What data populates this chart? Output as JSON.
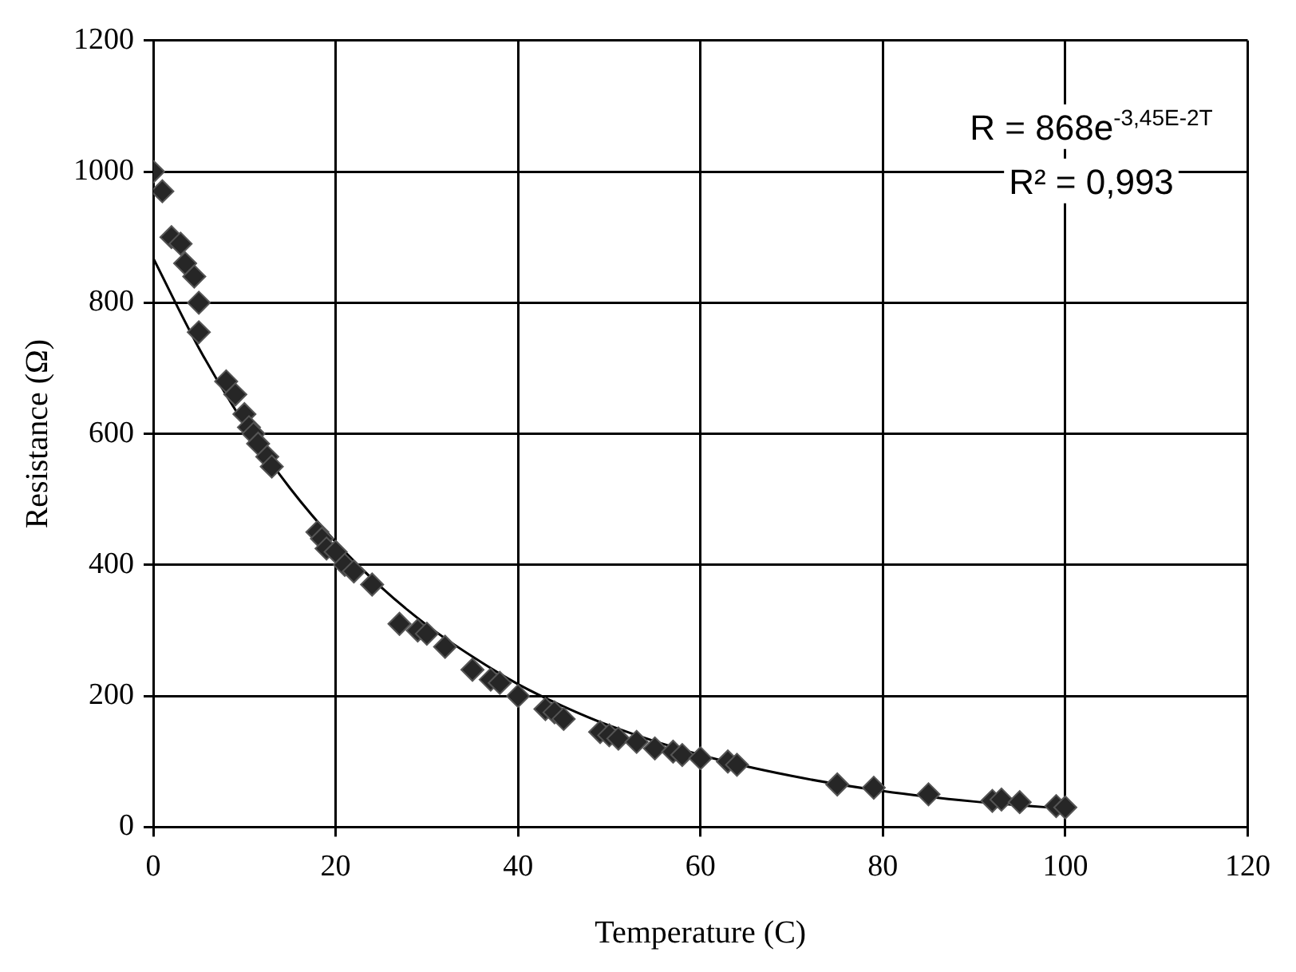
{
  "chart_data": {
    "type": "scatter",
    "xlabel": "Temperature (C)",
    "ylabel": "Resistance (Ω)",
    "xlim": [
      0,
      120
    ],
    "xticks": [
      0,
      20,
      40,
      60,
      80,
      100,
      120
    ],
    "ylim": [
      0,
      1200
    ],
    "yticks": [
      0,
      200,
      400,
      600,
      800,
      1000,
      1200
    ],
    "grid": true,
    "marker": "diamond",
    "annotations": [
      "R = 868e$^{-3,45E-2T}$",
      "R² = 0,993"
    ],
    "series": [
      {
        "type": "scatter",
        "color": "#262626",
        "x": [
          0,
          1,
          2,
          3,
          3.5,
          4.5,
          5,
          5,
          8,
          9,
          10,
          10.5,
          11,
          11.5,
          12.5,
          13,
          18,
          18.5,
          19,
          20,
          21,
          22,
          24,
          27,
          29,
          30,
          32,
          35,
          37,
          38,
          40,
          43,
          44,
          45,
          49,
          50,
          51,
          53,
          55,
          57,
          58,
          60,
          63,
          64,
          75,
          79,
          85,
          92,
          93,
          95,
          99,
          100
        ],
        "values": [
          1000,
          970,
          900,
          890,
          860,
          840,
          800,
          755,
          680,
          660,
          630,
          610,
          600,
          585,
          565,
          550,
          450,
          440,
          425,
          420,
          400,
          390,
          370,
          310,
          300,
          295,
          275,
          240,
          225,
          220,
          200,
          180,
          175,
          165,
          145,
          140,
          135,
          130,
          120,
          115,
          110,
          105,
          100,
          95,
          65,
          60,
          50,
          40,
          42,
          38,
          32,
          30
        ]
      },
      {
        "type": "line",
        "color": "#000000",
        "marker": "none",
        "x": [
          0,
          5,
          10,
          15,
          20,
          25,
          30,
          35,
          40,
          45,
          50,
          60,
          70,
          80,
          90,
          100
        ],
        "values": [
          868,
          731,
          615,
          517,
          435,
          366,
          308,
          260,
          218,
          184,
          155,
          110,
          78,
          55,
          39,
          28
        ]
      }
    ]
  }
}
